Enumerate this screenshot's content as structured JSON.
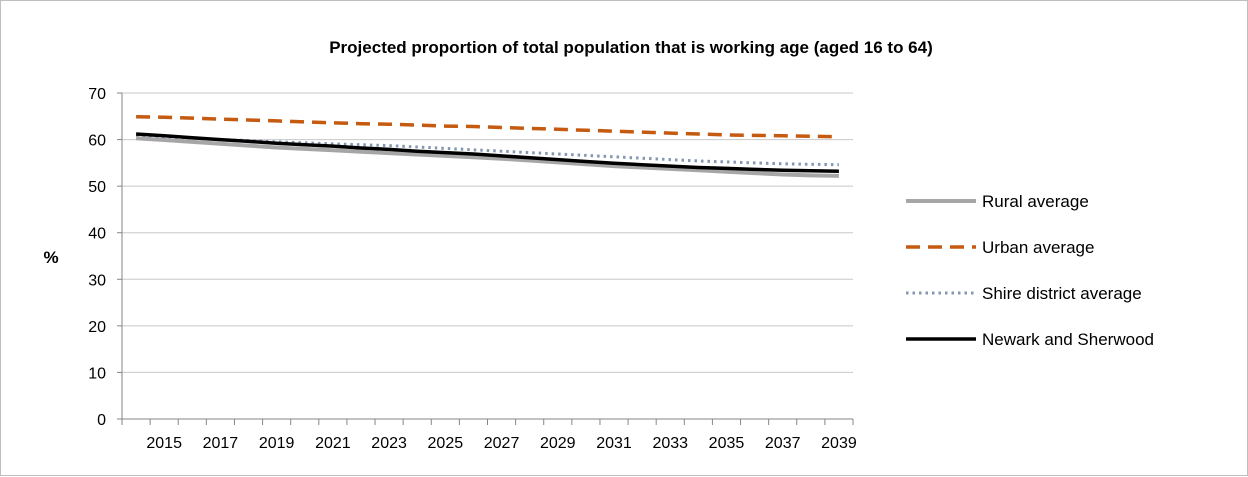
{
  "chart_data": {
    "type": "line",
    "title": "Projected proportion of total population that is working age (aged 16 to 64)",
    "xlabel": "",
    "ylabel": "%",
    "ylim": [
      0,
      70
    ],
    "yticks": [
      0,
      10,
      20,
      30,
      40,
      50,
      60,
      70
    ],
    "x": [
      2014,
      2015,
      2016,
      2017,
      2018,
      2019,
      2020,
      2021,
      2022,
      2023,
      2024,
      2025,
      2026,
      2027,
      2028,
      2029,
      2030,
      2031,
      2032,
      2033,
      2034,
      2035,
      2036,
      2037,
      2038,
      2039
    ],
    "xtick_labels": [
      "2015",
      "2017",
      "2019",
      "2021",
      "2023",
      "2025",
      "2027",
      "2029",
      "2031",
      "2033",
      "2035",
      "2037",
      "2039"
    ],
    "grid": "horizontal",
    "legend_position": "right",
    "series": [
      {
        "name": "Rural average",
        "color": "#a6a6a6",
        "style": "solid",
        "values": [
          60.3,
          59.9,
          59.5,
          59.1,
          58.7,
          58.3,
          58.0,
          57.7,
          57.4,
          57.1,
          56.8,
          56.5,
          56.2,
          55.9,
          55.5,
          55.1,
          54.7,
          54.3,
          54.0,
          53.7,
          53.4,
          53.1,
          52.8,
          52.5,
          52.3,
          52.2
        ]
      },
      {
        "name": "Urban average",
        "color": "#c55a11",
        "style": "dashed",
        "values": [
          64.9,
          64.8,
          64.6,
          64.4,
          64.2,
          64.0,
          63.8,
          63.6,
          63.4,
          63.3,
          63.1,
          62.9,
          62.8,
          62.6,
          62.4,
          62.2,
          62.0,
          61.8,
          61.6,
          61.4,
          61.2,
          61.0,
          60.9,
          60.8,
          60.7,
          60.6
        ]
      },
      {
        "name": "Shire district average",
        "color": "#8497b0",
        "style": "dotted",
        "values": [
          61.0,
          60.6,
          60.3,
          60.0,
          59.8,
          59.5,
          59.3,
          59.1,
          58.9,
          58.7,
          58.4,
          58.1,
          57.8,
          57.5,
          57.2,
          56.9,
          56.6,
          56.3,
          56.0,
          55.7,
          55.4,
          55.2,
          55.0,
          54.8,
          54.7,
          54.6
        ]
      },
      {
        "name": "Newark and Sherwood",
        "color": "#000000",
        "style": "solid",
        "values": [
          61.2,
          60.8,
          60.4,
          60.0,
          59.6,
          59.2,
          58.9,
          58.6,
          58.2,
          57.9,
          57.5,
          57.2,
          56.9,
          56.5,
          56.1,
          55.7,
          55.3,
          54.9,
          54.6,
          54.3,
          54.0,
          53.8,
          53.6,
          53.4,
          53.3,
          53.2
        ]
      }
    ]
  }
}
